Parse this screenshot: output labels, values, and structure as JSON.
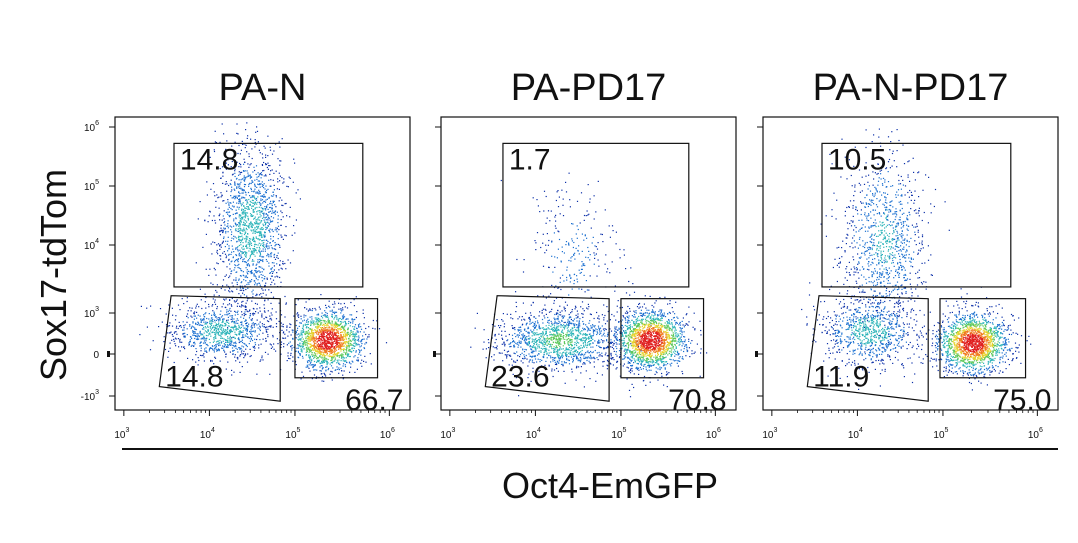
{
  "chart_data": {
    "type": "scatter",
    "xlabel": "Oct4-EmGFP",
    "ylabel": "Sox17-tdTom",
    "x_scale": "log",
    "y_scale": "biexponential",
    "x_ticks": [
      {
        "base": "10",
        "exp": "3",
        "value": 1000
      },
      {
        "base": "10",
        "exp": "4",
        "value": 10000
      },
      {
        "base": "10",
        "exp": "5",
        "value": 100000
      },
      {
        "base": "10",
        "exp": "6",
        "value": 1000000
      }
    ],
    "y_ticks": [
      {
        "base": "10",
        "exp": "6",
        "value": 1000000
      },
      {
        "base": "10",
        "exp": "5",
        "value": 100000
      },
      {
        "base": "10",
        "exp": "4",
        "value": 10000
      },
      {
        "base": "10",
        "exp": "3",
        "value": 1000
      },
      {
        "base": "0",
        "exp": "",
        "value": 0
      },
      {
        "base": "-10",
        "exp": "3",
        "value": -1000
      }
    ],
    "panels": [
      {
        "title": "PA-N",
        "gates": {
          "upper": "14.8",
          "left": "14.8",
          "right": "66.7"
        }
      },
      {
        "title": "PA-PD17",
        "gates": {
          "upper": "1.7",
          "left": "23.6",
          "right": "70.8"
        }
      },
      {
        "title": "PA-N-PD17",
        "gates": {
          "upper": "10.5",
          "left": "11.9",
          "right": "75.0"
        }
      }
    ],
    "colormap": [
      "#0b2fa8",
      "#1a6fd0",
      "#2bb3b8",
      "#5cc85a",
      "#e6d22c",
      "#f07a20",
      "#e01f1f"
    ]
  }
}
